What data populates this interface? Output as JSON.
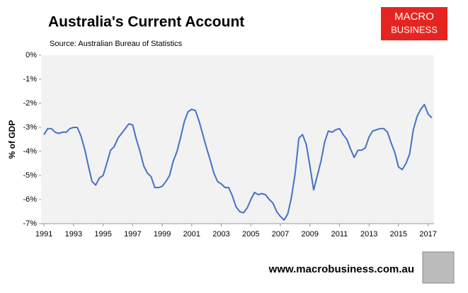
{
  "chart_data": {
    "type": "line",
    "title": "Australia's Current Account",
    "subtitle": "Source: Australian Bureau of Statistics",
    "y_label": "% of GDP",
    "logo": [
      "MACRO",
      "BUSINESS"
    ],
    "footer": "www.macrobusiness.com.au",
    "color": "#4472c4",
    "xlim": [
      1990.8,
      2017.4
    ],
    "xticks": [
      1991,
      1993,
      1995,
      1997,
      1999,
      2001,
      2003,
      2005,
      2007,
      2009,
      2011,
      2013,
      2015,
      2017
    ],
    "ylim": [
      -7,
      0
    ],
    "yticks": [
      {
        "value": 0,
        "label": "0%"
      },
      {
        "value": -1,
        "label": "-1%"
      },
      {
        "value": -2,
        "label": "-2%"
      },
      {
        "value": -3,
        "label": "-3%"
      },
      {
        "value": -4,
        "label": "-4%"
      },
      {
        "value": -5,
        "label": "-5%"
      },
      {
        "value": -6,
        "label": "-6%"
      },
      {
        "value": -7,
        "label": "-7%"
      }
    ],
    "x": [
      1991,
      1991.25,
      1991.5,
      1991.75,
      1992,
      1992.25,
      1992.5,
      1992.75,
      1993,
      1993.25,
      1993.5,
      1993.75,
      1994,
      1994.25,
      1994.5,
      1994.75,
      1995,
      1995.25,
      1995.5,
      1995.75,
      1996,
      1996.25,
      1996.5,
      1996.75,
      1997,
      1997.25,
      1997.5,
      1997.75,
      1998,
      1998.25,
      1998.5,
      1998.75,
      1999,
      1999.25,
      1999.5,
      1999.75,
      2000,
      2000.25,
      2000.5,
      2000.75,
      2001,
      2001.25,
      2001.5,
      2001.75,
      2002,
      2002.25,
      2002.5,
      2002.75,
      2003,
      2003.25,
      2003.5,
      2003.75,
      2004,
      2004.25,
      2004.5,
      2004.75,
      2005,
      2005.25,
      2005.5,
      2005.75,
      2006,
      2006.25,
      2006.5,
      2006.75,
      2007,
      2007.25,
      2007.5,
      2007.75,
      2008,
      2008.25,
      2008.5,
      2008.75,
      2009,
      2009.25,
      2009.5,
      2009.75,
      2010,
      2010.25,
      2010.5,
      2010.75,
      2011,
      2011.25,
      2011.5,
      2011.75,
      2012,
      2012.25,
      2012.5,
      2012.75,
      2013,
      2013.25,
      2013.5,
      2013.75,
      2014,
      2014.25,
      2014.5,
      2014.75,
      2015,
      2015.25,
      2015.5,
      2015.75,
      2016,
      2016.25,
      2016.5,
      2016.75,
      2017,
      2017.25
    ],
    "values": [
      -3.3,
      -3.05,
      -3.05,
      -3.2,
      -3.25,
      -3.2,
      -3.2,
      -3.05,
      -3.0,
      -3.0,
      -3.35,
      -3.9,
      -4.6,
      -5.25,
      -5.4,
      -5.1,
      -5.0,
      -4.5,
      -3.95,
      -3.8,
      -3.45,
      -3.25,
      -3.05,
      -2.85,
      -2.9,
      -3.5,
      -4.0,
      -4.6,
      -4.9,
      -5.05,
      -5.5,
      -5.5,
      -5.45,
      -5.25,
      -5.0,
      -4.4,
      -4.0,
      -3.4,
      -2.75,
      -2.35,
      -2.25,
      -2.3,
      -2.75,
      -3.3,
      -3.85,
      -4.35,
      -4.9,
      -5.25,
      -5.35,
      -5.5,
      -5.5,
      -5.85,
      -6.3,
      -6.5,
      -6.55,
      -6.35,
      -6.0,
      -5.7,
      -5.8,
      -5.75,
      -5.8,
      -6.0,
      -6.15,
      -6.5,
      -6.7,
      -6.85,
      -6.6,
      -5.9,
      -4.9,
      -3.45,
      -3.3,
      -3.7,
      -4.6,
      -5.6,
      -5.0,
      -4.4,
      -3.6,
      -3.15,
      -3.2,
      -3.1,
      -3.05,
      -3.3,
      -3.5,
      -3.9,
      -4.25,
      -3.95,
      -3.95,
      -3.85,
      -3.4,
      -3.15,
      -3.1,
      -3.05,
      -3.05,
      -3.2,
      -3.65,
      -4.05,
      -4.65,
      -4.75,
      -4.5,
      -4.1,
      -3.1,
      -2.55,
      -2.25,
      -2.05,
      -2.45,
      -2.6
    ]
  }
}
